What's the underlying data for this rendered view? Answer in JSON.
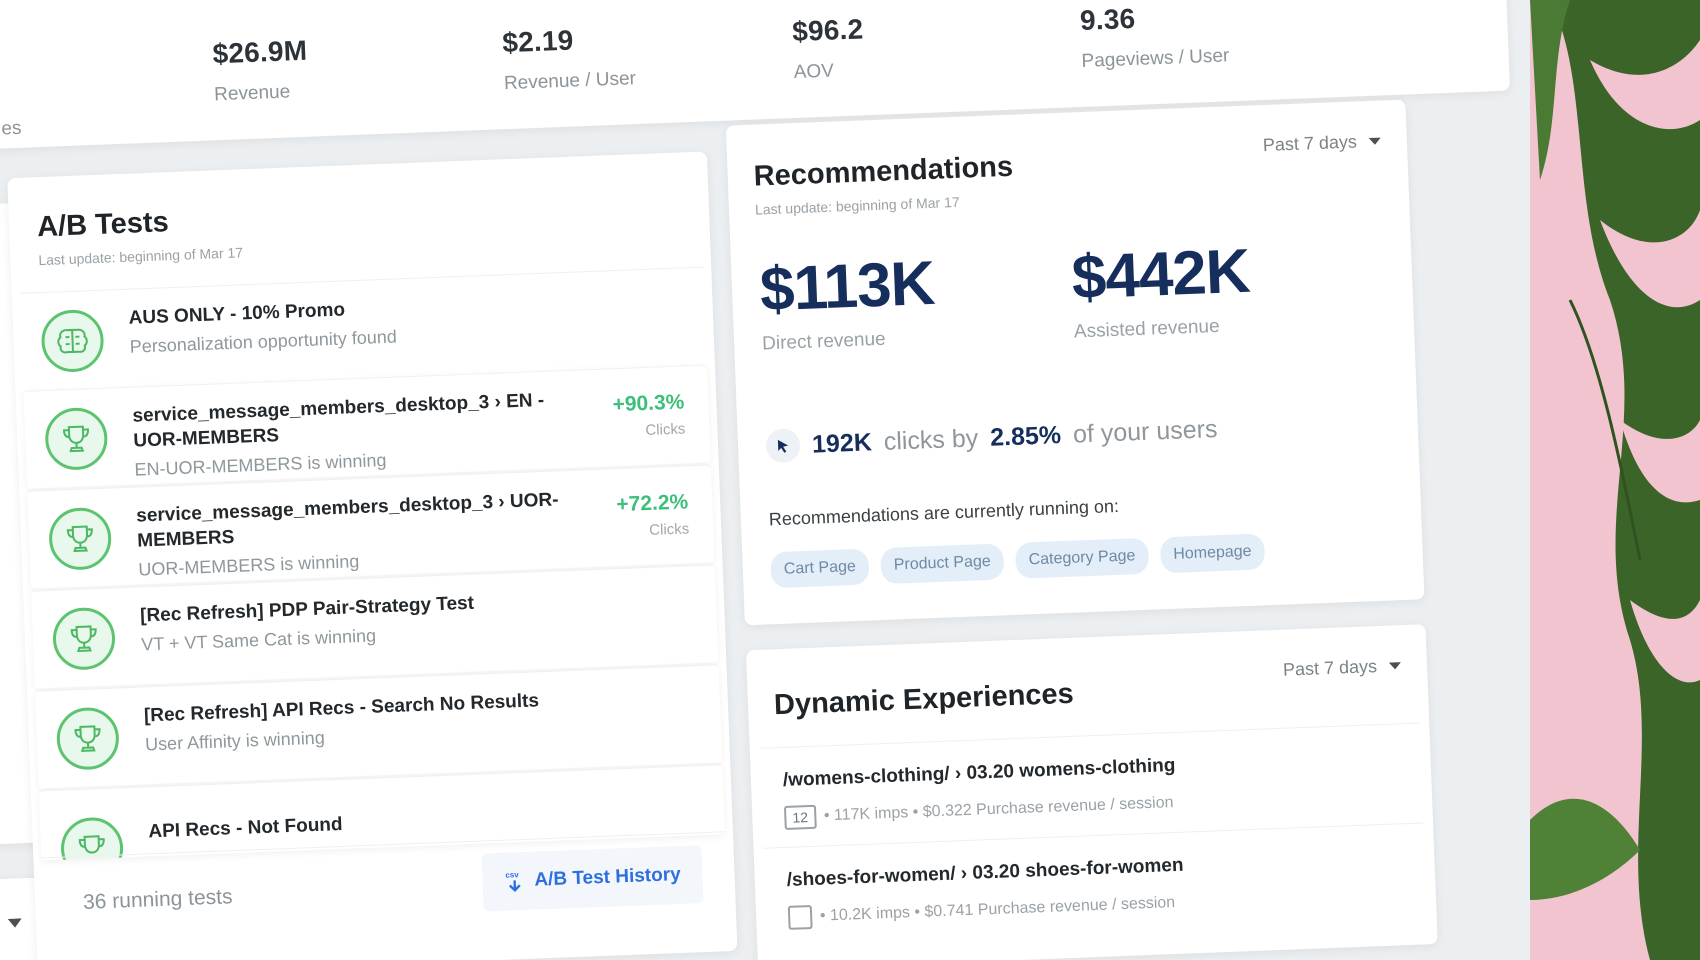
{
  "kpis": {
    "partial_label": "es",
    "items": [
      {
        "value": "$26.9M",
        "label": "Revenue"
      },
      {
        "value": "$2.19",
        "label": "Revenue / User"
      },
      {
        "value": "$96.2",
        "label": "AOV"
      },
      {
        "value": "9.36",
        "label": "Pageviews / User"
      }
    ]
  },
  "ab_tests": {
    "title": "A/B Tests",
    "subtitle": "Last update: beginning of Mar 17",
    "rows": [
      {
        "title": "AUS ONLY - 10% Promo",
        "desc": "Personalization opportunity found",
        "icon": "brain-icon",
        "pct": "",
        "unit": ""
      },
      {
        "title": "service_message_members_desktop_3 › EN - UOR-MEMBERS",
        "desc": "EN-UOR-MEMBERS is winning",
        "icon": "trophy-icon",
        "pct": "+90.3%",
        "unit": "Clicks"
      },
      {
        "title": "service_message_members_desktop_3 › UOR-MEMBERS",
        "desc": "UOR-MEMBERS is winning",
        "icon": "trophy-icon",
        "pct": "+72.2%",
        "unit": "Clicks"
      },
      {
        "title": "[Rec Refresh] PDP Pair-Strategy Test",
        "desc": "VT + VT Same Cat is winning",
        "icon": "trophy-icon",
        "pct": "",
        "unit": ""
      },
      {
        "title": "[Rec Refresh] API Recs - Search No Results",
        "desc": "User Affinity is winning",
        "icon": "trophy-icon",
        "pct": "",
        "unit": ""
      },
      {
        "title": "API Recs - Not Found",
        "desc": "",
        "icon": "trophy-icon",
        "pct": "",
        "unit": ""
      }
    ],
    "running": "36 running tests",
    "history_button": "A/B Test History",
    "history_icon": "csv-download-icon"
  },
  "recommendations": {
    "title": "Recommendations",
    "subtitle": "Last update: beginning of Mar 17",
    "period": "Past 7 days",
    "direct_value": "$113K",
    "direct_label": "Direct revenue",
    "assisted_value": "$442K",
    "assisted_label": "Assisted revenue",
    "clicks_value": "192K",
    "clicks_mid": "clicks by",
    "clicks_pct": "2.85%",
    "clicks_tail": "of your users",
    "running_label": "Recommendations are currently running on:",
    "tags": [
      "Cart Page",
      "Product Page",
      "Category Page",
      "Homepage"
    ]
  },
  "dynamic": {
    "title": "Dynamic Experiences",
    "period": "Past 7 days",
    "rows": [
      {
        "title": "/womens-clothing/ › 03.20 womens-clothing",
        "badge": "12",
        "meta": "• 117K imps • $0.322 Purchase revenue / session"
      },
      {
        "title": "/shoes-for-women/ › 03.20 shoes-for-women",
        "badge": "",
        "meta": "• 10.2K imps • $0.741 Purchase revenue / session"
      }
    ]
  },
  "colors": {
    "accent_green": "#3cbf7a",
    "navy": "#162e5c",
    "link_blue": "#2d6fe0",
    "decor_pink": "#f2c4cf",
    "leaf_green": "#3f6b2a"
  }
}
